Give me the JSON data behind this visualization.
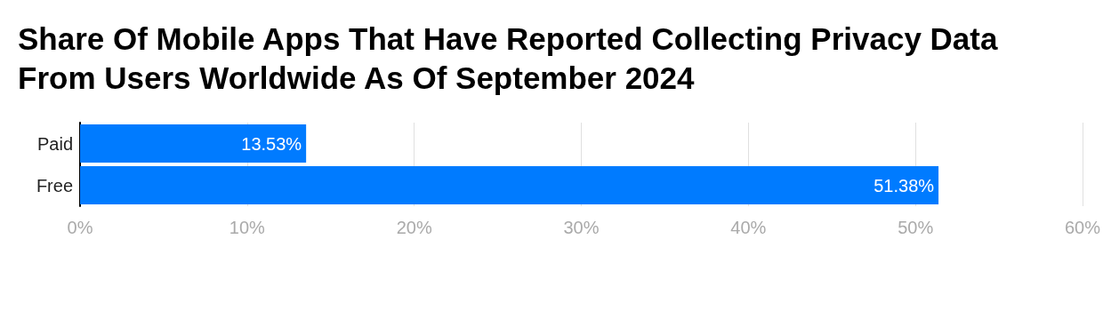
{
  "chart_data": {
    "type": "bar",
    "orientation": "horizontal",
    "title": "Share Of Mobile Apps That Have Reported Collecting Privacy Data From Users Worldwide As Of September 2024",
    "categories": [
      "Paid",
      "Free"
    ],
    "values": [
      13.53,
      51.38
    ],
    "value_labels": [
      "13.53%",
      "51.38%"
    ],
    "color": "#007bff",
    "xlim": [
      0,
      60
    ],
    "xticks": [
      {
        "value": 0,
        "label": "0%"
      },
      {
        "value": 10,
        "label": "10%"
      },
      {
        "value": 20,
        "label": "20%"
      },
      {
        "value": 30,
        "label": "30%"
      },
      {
        "value": 40,
        "label": "40%"
      },
      {
        "value": 50,
        "label": "50%"
      },
      {
        "value": 60,
        "label": "60%"
      }
    ],
    "grid": "x"
  }
}
